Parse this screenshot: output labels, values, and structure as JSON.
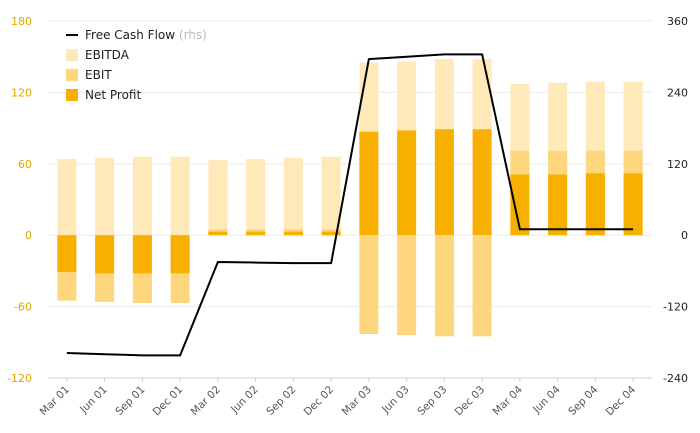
{
  "chart_data": {
    "type": "bar",
    "categories": [
      "Mar 01",
      "Jun 01",
      "Sep 01",
      "Dec 01",
      "Mar 02",
      "Jun 02",
      "Sep 02",
      "Dec 02",
      "Mar 03",
      "Jun 03",
      "Sep 03",
      "Dec 03",
      "Mar 04",
      "Jun 04",
      "Sep 04",
      "Dec 04"
    ],
    "series": [
      {
        "name": "EBITDA",
        "values": [
          64,
          65,
          66,
          66,
          63,
          64,
          65,
          66,
          145,
          146,
          148,
          148,
          127,
          128,
          129,
          129
        ],
        "color": "#ffe9b8"
      },
      {
        "name": "EBIT",
        "values": [
          -55,
          -56,
          -57,
          -57,
          5,
          5,
          5,
          5,
          -83,
          -84,
          -85,
          -85,
          71,
          71,
          71,
          71
        ],
        "color": "#fdd67d"
      },
      {
        "name": "Net Profit",
        "values": [
          -31,
          -32,
          -32,
          -32,
          3,
          3,
          3,
          3,
          87,
          88,
          89,
          89,
          51,
          51,
          52,
          52
        ],
        "color": "#f7af00"
      },
      {
        "name": "Free Cash Flow",
        "note": "(rhs)",
        "axis": "right",
        "type": "line",
        "values": [
          -198,
          -200,
          -202,
          -202,
          -45,
          -46,
          -47,
          -47,
          296,
          300,
          304,
          304,
          10,
          10,
          10,
          10
        ],
        "color": "#000000"
      }
    ],
    "y_left": {
      "range": [
        -120,
        180
      ],
      "ticks": [
        -120,
        -60,
        0,
        60,
        120,
        180
      ]
    },
    "y_right": {
      "range": [
        -240,
        360
      ],
      "ticks": [
        -240,
        -120,
        0,
        120,
        240,
        360
      ]
    },
    "grid": true,
    "legend_placement": "top-left"
  }
}
